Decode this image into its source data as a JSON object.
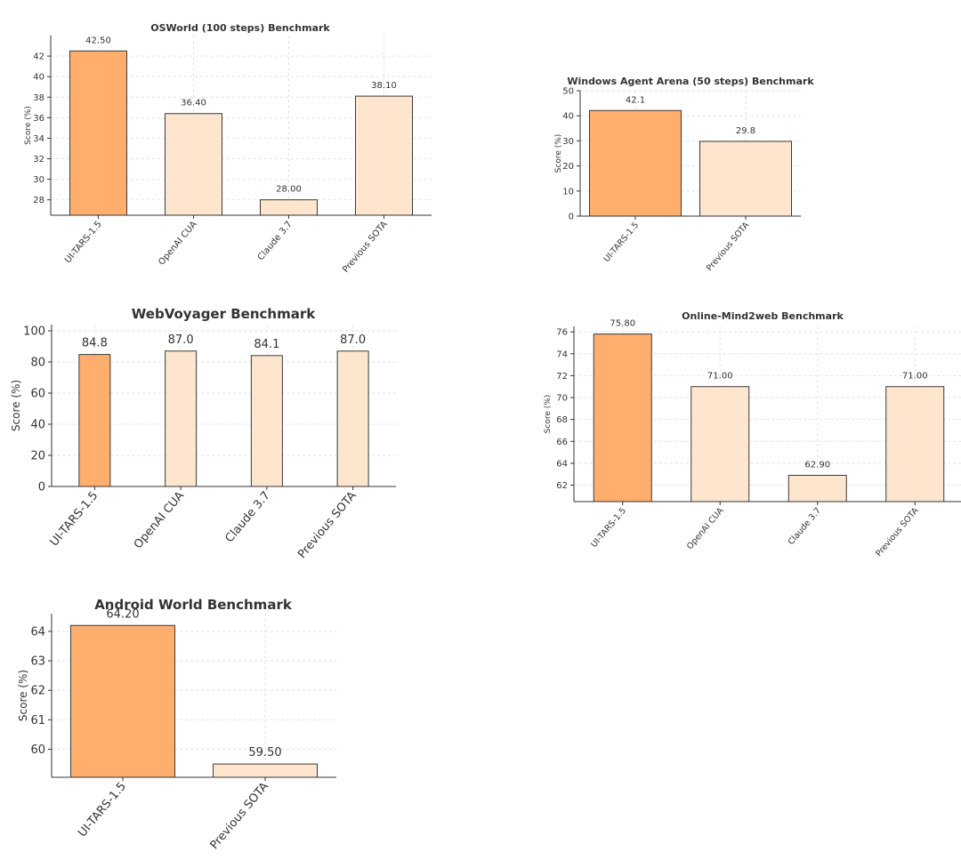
{
  "colors": {
    "highlight": "#FFAE6E",
    "other": "#FDE6CD",
    "edge": "#3a3a3a"
  },
  "chart_data": [
    {
      "type": "bar",
      "title": "OSWorld (100 steps) Benchmark",
      "ylabel": "Score (%)",
      "categories": [
        "UI-TARS-1.5",
        "OpenAI CUA",
        "Claude 3.7",
        "Previous SOTA"
      ],
      "values": [
        42.5,
        36.4,
        28.0,
        38.1
      ],
      "value_labels": [
        "42.50",
        "36.40",
        "28.00",
        "38.10"
      ],
      "ylim": [
        26.5,
        44.0
      ],
      "yticks": [
        "28",
        "30",
        "32",
        "34",
        "36",
        "38",
        "40",
        "42"
      ],
      "highlight_index": 0,
      "grid": true
    },
    {
      "type": "bar",
      "title": "Windows Agent Arena (50 steps) Benchmark",
      "ylabel": "Score (%)",
      "categories": [
        "UI-TARS-1.5",
        "Previous SOTA"
      ],
      "values": [
        42.1,
        29.8
      ],
      "value_labels": [
        "42.1",
        "29.8"
      ],
      "ylim": [
        0,
        50
      ],
      "yticks": [
        "0",
        "10",
        "20",
        "30",
        "40",
        "50"
      ],
      "highlight_index": 0,
      "grid": true
    },
    {
      "type": "bar",
      "title": "WebVoyager Benchmark",
      "ylabel": "Score (%)",
      "categories": [
        "UI-TARS-1.5",
        "OpenAI CUA",
        "Claude 3.7",
        "Previous SOTA"
      ],
      "values": [
        84.8,
        87.0,
        84.1,
        87.0
      ],
      "value_labels": [
        "84.8",
        "87.0",
        "84.1",
        "87.0"
      ],
      "ylim": [
        0,
        104
      ],
      "yticks": [
        "0",
        "20",
        "40",
        "60",
        "80",
        "100"
      ],
      "highlight_index": 0,
      "grid": true
    },
    {
      "type": "bar",
      "title": "Online-Mind2web Benchmark",
      "ylabel": "Score (%)",
      "categories": [
        "UI-TARS-1.5",
        "OpenAI CUA",
        "Claude 3.7",
        "Previous SOTA"
      ],
      "values": [
        75.8,
        71.0,
        62.9,
        71.0
      ],
      "value_labels": [
        "75.80",
        "71.00",
        "62.90",
        "71.00"
      ],
      "ylim": [
        60.5,
        76.5
      ],
      "yticks": [
        "62",
        "64",
        "66",
        "68",
        "70",
        "72",
        "74",
        "76"
      ],
      "highlight_index": 0,
      "grid": true
    },
    {
      "type": "bar",
      "title": "Android World Benchmark",
      "ylabel": "Score (%)",
      "categories": [
        "UI-TARS-1.5",
        "Previous SOTA"
      ],
      "values": [
        64.2,
        59.5
      ],
      "value_labels": [
        "64.20",
        "59.50"
      ],
      "ylim": [
        59.05,
        64.6
      ],
      "yticks": [
        "60",
        "61",
        "62",
        "63",
        "64"
      ],
      "highlight_index": 0,
      "grid": true
    }
  ]
}
